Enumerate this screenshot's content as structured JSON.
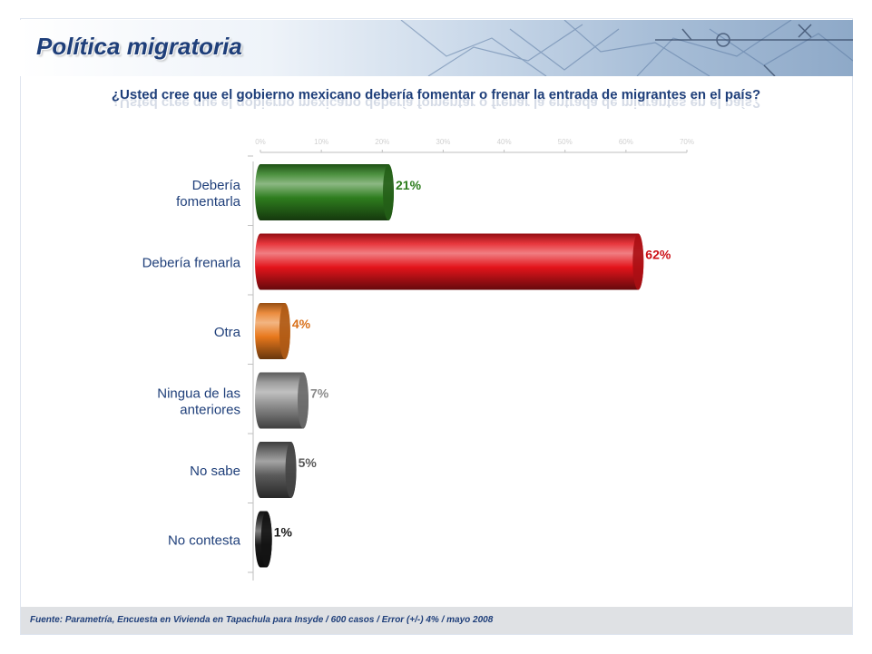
{
  "header": {
    "title": "Política migratoria"
  },
  "question": "¿Usted cree que el gobierno mexicano debería fomentar o frenar la entrada de migrantes en el país?",
  "footer": {
    "source": "Fuente: Parametría, Encuesta en Vivienda en Tapachula para Insyde / 600 casos / Error (+/-) 4% / mayo 2008"
  },
  "chart_data": {
    "type": "bar",
    "orientation": "horizontal",
    "xlim": [
      0,
      70
    ],
    "ticks": [
      "0%",
      "10%",
      "20%",
      "30%",
      "40%",
      "50%",
      "60%",
      "70%"
    ],
    "categories": [
      [
        "Debería",
        "fomentarla"
      ],
      [
        "Debería frenarla"
      ],
      [
        "Otra"
      ],
      [
        "Ningua de las",
        "anteriores"
      ],
      [
        "No sabe"
      ],
      [
        "No contesta"
      ]
    ],
    "values": [
      21,
      62,
      4,
      7,
      5,
      1
    ],
    "value_labels": [
      "21%",
      "62%",
      "4%",
      "7%",
      "5%",
      "1%"
    ],
    "colors": [
      "#2e7d1e",
      "#e3141b",
      "#e8781c",
      "#8c8c8c",
      "#5a5a5a",
      "#1a1a1a"
    ],
    "label_colors": [
      "#2e7d1e",
      "#cc1016",
      "#d9701a",
      "#8c8c8c",
      "#5a5a5a",
      "#1a1a1a"
    ],
    "grid": false
  }
}
